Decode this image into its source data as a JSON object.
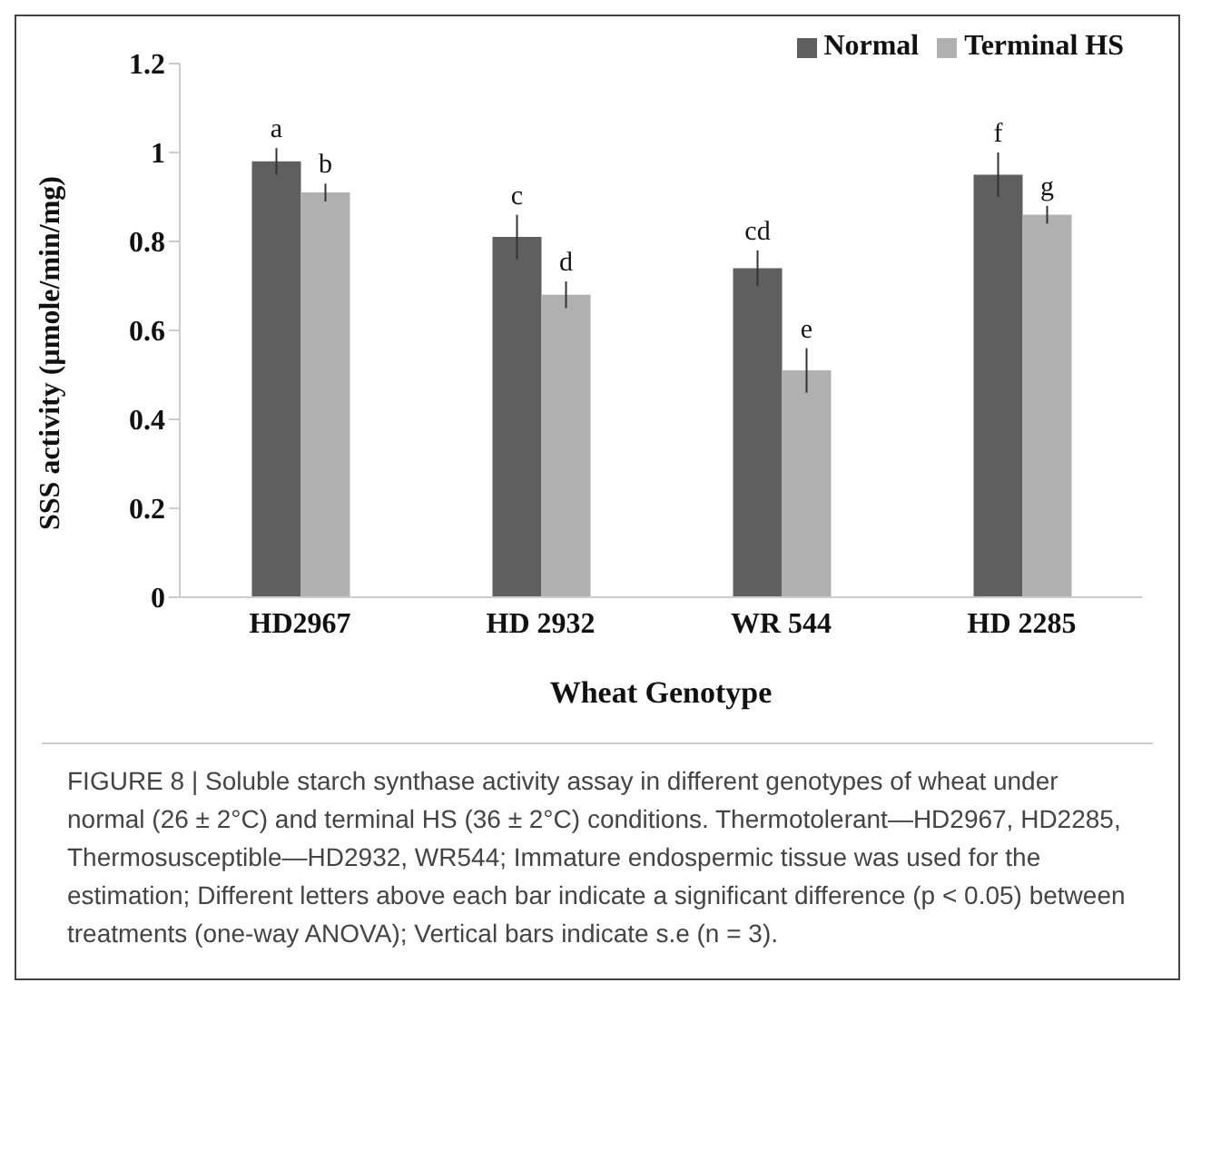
{
  "chart_data": {
    "type": "bar",
    "categories": [
      "HD2967",
      "HD 2932",
      "WR 544",
      "HD 2285"
    ],
    "xlabel": "Wheat Genotype",
    "ylabel": "SSS activity (µmole/min/mg)",
    "series": [
      {
        "name": "Normal",
        "color": "#5f5f5f",
        "values": [
          0.98,
          0.81,
          0.74,
          0.95
        ],
        "errors": [
          0.03,
          0.05,
          0.04,
          0.05
        ]
      },
      {
        "name": "Terminal HS",
        "color": "#b0b0b0",
        "values": [
          0.91,
          0.68,
          0.51,
          0.86
        ],
        "errors": [
          0.02,
          0.03,
          0.05,
          0.02
        ]
      }
    ],
    "ylim": [
      0,
      1.2
    ],
    "yticks": [
      0,
      0.2,
      0.4,
      0.6,
      0.8,
      1,
      1.2
    ],
    "grid": false,
    "legend": "top right",
    "annotations": [
      {
        "text": "a",
        "x": "HD2967",
        "y": 0.98
      },
      {
        "text": "b",
        "x": "HD2967",
        "y": 0.91
      },
      {
        "text": "c",
        "x": "HD 2932",
        "y": 0.81
      },
      {
        "text": "d",
        "x": "HD 2932",
        "y": 0.68
      },
      {
        "text": "cd",
        "x": "WR 544",
        "y": 0.74
      },
      {
        "text": "e",
        "x": "WR 544",
        "y": 0.51
      },
      {
        "text": "f",
        "x": "HD 2285",
        "y": 0.95
      },
      {
        "text": "g",
        "x": "HD 2285",
        "y": 0.86
      },
      "FIGURE 8 | Soluble starch synthase activity assay in different genotypes of wheat under normal (26 ± 2°C) and terminal HS (36 ± 2°C) conditions. Thermotolerant—HD2967, HD2285, Thermosusceptible—HD2932, WR544; Immature endospermic tissue was used for the estimation; Different letters above each bar indicate a significant difference (p < 0.05) between treatments (one-way ANOVA); Vertical bars indicate s.e (n = 3)."
    ]
  }
}
